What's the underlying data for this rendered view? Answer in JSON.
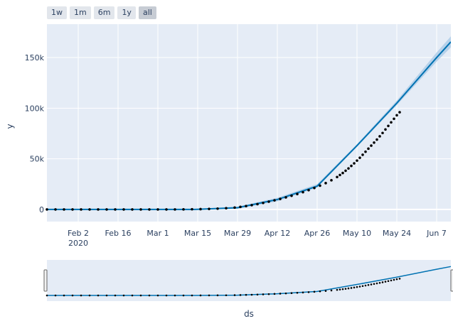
{
  "range_selector": {
    "buttons": [
      {
        "label": "1w",
        "active": false
      },
      {
        "label": "1m",
        "active": false
      },
      {
        "label": "6m",
        "active": false
      },
      {
        "label": "1y",
        "active": false
      },
      {
        "label": "all",
        "active": true
      }
    ]
  },
  "colors": {
    "plot_bg": "#e5ecf6",
    "grid": "#ffffff",
    "forecast_line": "#0072B2",
    "uncertainty_band": "#aecde8",
    "actual_points": "#000000",
    "text": "#2a3f5f"
  },
  "chart_data": {
    "type": "line",
    "title": "",
    "xlabel": "ds",
    "ylabel": "y",
    "x_axis": {
      "type": "date",
      "range": [
        "2020-01-22",
        "2020-06-12"
      ],
      "ticks": [
        {
          "date": "2020-02-02",
          "label": "Feb 2",
          "sublabel": "2020"
        },
        {
          "date": "2020-02-16",
          "label": "Feb 16"
        },
        {
          "date": "2020-03-01",
          "label": "Mar 1"
        },
        {
          "date": "2020-03-15",
          "label": "Mar 15"
        },
        {
          "date": "2020-03-29",
          "label": "Mar 29"
        },
        {
          "date": "2020-04-12",
          "label": "Apr 12"
        },
        {
          "date": "2020-04-26",
          "label": "Apr 26"
        },
        {
          "date": "2020-05-10",
          "label": "May 10"
        },
        {
          "date": "2020-05-24",
          "label": "May 24"
        },
        {
          "date": "2020-06-07",
          "label": "Jun 7"
        }
      ]
    },
    "y_axis": {
      "range": [
        -12000,
        183000
      ],
      "ticks": [
        {
          "value": 0,
          "label": "0"
        },
        {
          "value": 50000,
          "label": "50k"
        },
        {
          "value": 100000,
          "label": "100k"
        },
        {
          "value": 150000,
          "label": "150k"
        }
      ]
    },
    "grid": true,
    "legend": "none",
    "series": [
      {
        "kind": "forecast_band",
        "x": [
          "2020-01-22",
          "2020-03-14",
          "2020-03-29",
          "2020-04-12",
          "2020-04-26",
          "2020-05-10",
          "2020-05-24",
          "2020-06-07",
          "2020-06-12"
        ],
        "lower": [
          -300,
          -300,
          600,
          8000,
          21500,
          62000,
          103000,
          146000,
          160000
        ],
        "upper": [
          300,
          300,
          2800,
          11500,
          25000,
          64500,
          107500,
          155000,
          171000
        ]
      },
      {
        "kind": "forecast_line",
        "x": [
          "2020-01-22",
          "2020-03-14",
          "2020-03-29",
          "2020-04-12",
          "2020-04-26",
          "2020-05-10",
          "2020-05-24",
          "2020-06-07",
          "2020-06-12"
        ],
        "y": [
          0,
          0,
          1700,
          9800,
          23000,
          63000,
          105000,
          150000,
          165500
        ]
      },
      {
        "kind": "actual_points",
        "x": [
          "2020-01-22",
          "2020-05-17"
        ],
        "points": [
          [
            0,
            0
          ],
          [
            3,
            0
          ],
          [
            6,
            0
          ],
          [
            9,
            0
          ],
          [
            12,
            0
          ],
          [
            15,
            0
          ],
          [
            18,
            0
          ],
          [
            21,
            0
          ],
          [
            24,
            0
          ],
          [
            27,
            0
          ],
          [
            30,
            0
          ],
          [
            33,
            0
          ],
          [
            36,
            0
          ],
          [
            39,
            0
          ],
          [
            42,
            0
          ],
          [
            45,
            10
          ],
          [
            48,
            50
          ],
          [
            51,
            150
          ],
          [
            54,
            300
          ],
          [
            57,
            500
          ],
          [
            60,
            800
          ],
          [
            63,
            1200
          ],
          [
            66,
            1800
          ],
          [
            68,
            2500
          ],
          [
            70,
            3300
          ],
          [
            72,
            4200
          ],
          [
            74,
            5200
          ],
          [
            76,
            6400
          ],
          [
            78,
            7700
          ],
          [
            80,
            9000
          ],
          [
            82,
            10400
          ],
          [
            84,
            11900
          ],
          [
            86,
            13500
          ],
          [
            88,
            15200
          ],
          [
            90,
            17000
          ],
          [
            92,
            19000
          ],
          [
            94,
            21200
          ],
          [
            96,
            23500
          ],
          [
            98,
            26000
          ],
          [
            100,
            28800
          ],
          [
            102,
            32000
          ],
          [
            103,
            34000
          ],
          [
            104,
            36000
          ],
          [
            105,
            38200
          ],
          [
            106,
            40500
          ],
          [
            107,
            43000
          ],
          [
            108,
            45500
          ],
          [
            109,
            48200
          ],
          [
            110,
            51000
          ],
          [
            111,
            54000
          ],
          [
            112,
            57000
          ],
          [
            113,
            60000
          ],
          [
            114,
            63000
          ],
          [
            115,
            66000
          ],
          [
            116,
            69000
          ],
          [
            117,
            72200
          ],
          [
            118,
            75500
          ],
          [
            119,
            79000
          ],
          [
            120,
            82500
          ],
          [
            121,
            86000
          ],
          [
            122,
            89500
          ],
          [
            123,
            93000
          ],
          [
            124,
            96000
          ]
        ]
      }
    ]
  },
  "range_slider": {
    "visible": true
  }
}
